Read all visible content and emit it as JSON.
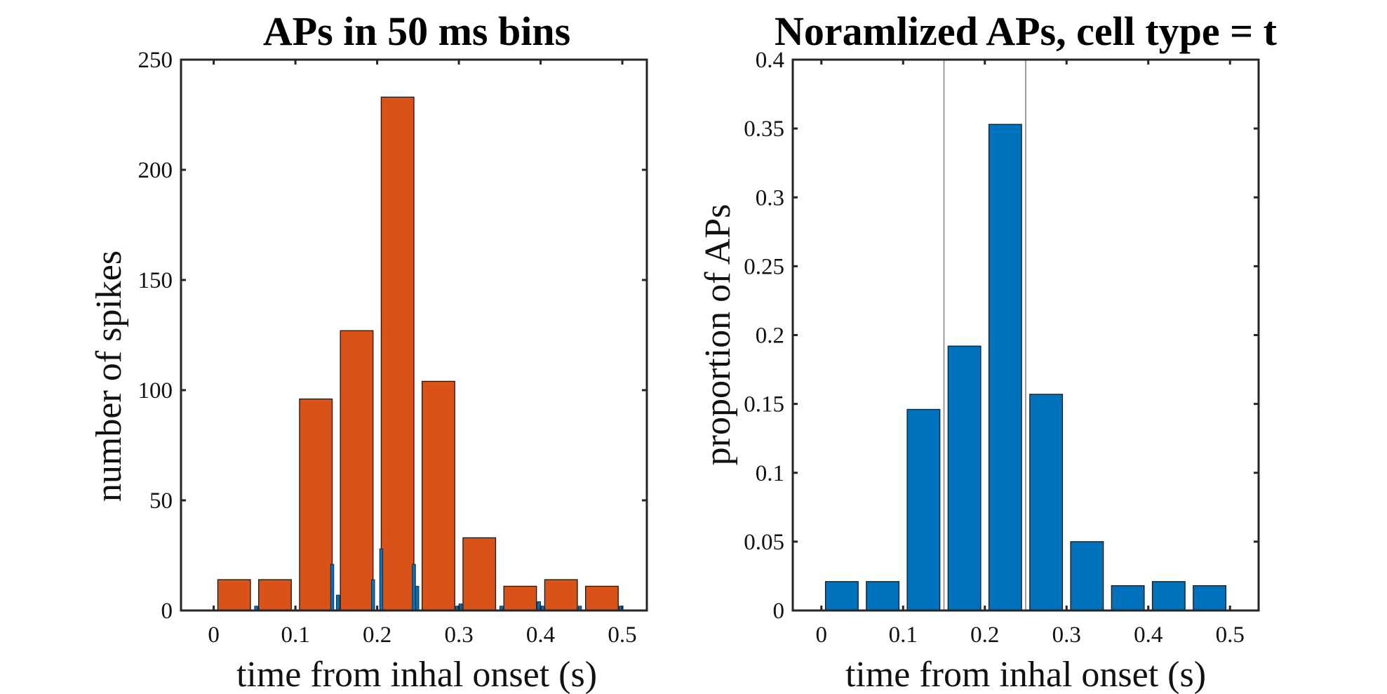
{
  "chart_data": [
    {
      "type": "bar",
      "title": "APs in 50 ms bins",
      "xlabel": "time from inhal onset (s)",
      "ylabel": "number of spikes",
      "xlim": [
        -0.04,
        0.53
      ],
      "ylim": [
        0,
        250
      ],
      "xticks": [
        0,
        0.1,
        0.2,
        0.3,
        0.4,
        0.5
      ],
      "xtick_labels": [
        "0",
        "0.1",
        "0.2",
        "0.3",
        "0.4",
        "0.5"
      ],
      "yticks": [
        0,
        50,
        100,
        150,
        200,
        250
      ],
      "ytick_labels": [
        "0",
        "50",
        "100",
        "150",
        "200",
        "250"
      ],
      "grid": false,
      "series": [
        {
          "color": "#D95319",
          "bar_width": 0.04,
          "x": [
            0.025,
            0.075,
            0.125,
            0.175,
            0.225,
            0.275,
            0.325,
            0.375,
            0.425,
            0.475
          ],
          "values": [
            14,
            14,
            96,
            127,
            233,
            104,
            33,
            11,
            14,
            11
          ]
        },
        {
          "color": "#0072BD",
          "bar_width": 0.004,
          "x": [
            0.052,
            0.145,
            0.152,
            0.195,
            0.205,
            0.245,
            0.249,
            0.298,
            0.302,
            0.352,
            0.398,
            0.402,
            0.448,
            0.498
          ],
          "values": [
            2,
            21,
            7,
            14,
            28,
            21,
            11,
            2,
            3,
            2,
            4,
            2,
            2,
            2
          ]
        }
      ]
    },
    {
      "type": "bar",
      "title": "Noramlized APs, cell type = t",
      "xlabel": "time from inhal onset (s)",
      "ylabel": "proportion of APs",
      "xlim": [
        -0.035,
        0.535
      ],
      "ylim": [
        0,
        0.4
      ],
      "xticks": [
        0,
        0.1,
        0.2,
        0.3,
        0.4,
        0.5
      ],
      "xtick_labels": [
        "0",
        "0.1",
        "0.2",
        "0.3",
        "0.4",
        "0.5"
      ],
      "yticks": [
        0,
        0.05,
        0.1,
        0.15,
        0.2,
        0.25,
        0.3,
        0.35,
        0.4
      ],
      "ytick_labels": [
        "0",
        "0.05",
        "0.1",
        "0.15",
        "0.2",
        "0.25",
        "0.3",
        "0.35",
        "0.4"
      ],
      "grid": false,
      "vlines": [
        0.15,
        0.25
      ],
      "series": [
        {
          "color": "#0072BD",
          "bar_width": 0.04,
          "x": [
            0.025,
            0.075,
            0.125,
            0.175,
            0.225,
            0.275,
            0.325,
            0.375,
            0.425,
            0.475
          ],
          "values": [
            0.021,
            0.021,
            0.146,
            0.192,
            0.353,
            0.157,
            0.05,
            0.018,
            0.021,
            0.018
          ]
        }
      ]
    }
  ]
}
